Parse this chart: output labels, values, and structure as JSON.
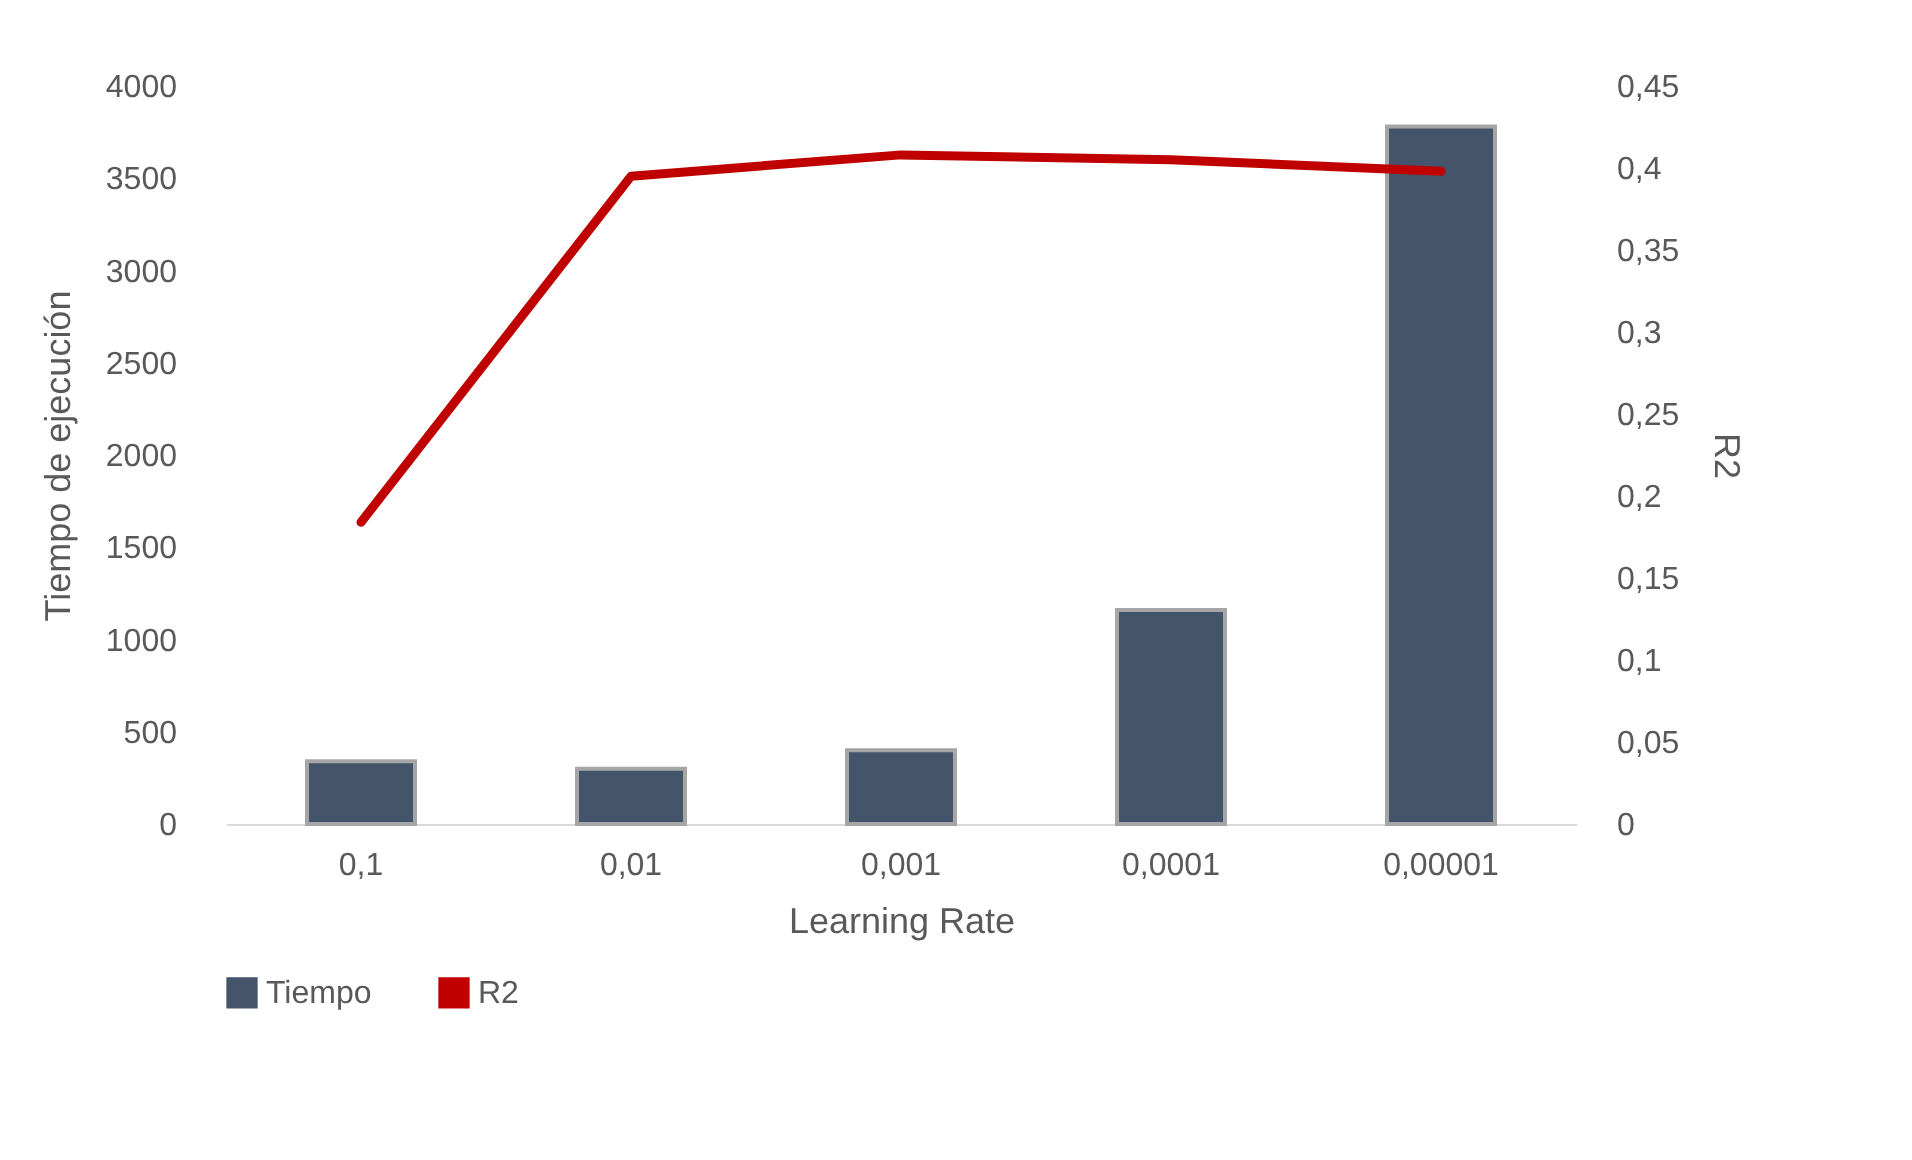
{
  "chart_data": {
    "type": "bar",
    "xlabel": "Learning Rate",
    "ylabel": "Tiempo de ejecución",
    "y2label": "R2",
    "categories": [
      "0,1",
      "0,01",
      "0,001",
      "0,0001",
      "0,00001"
    ],
    "series": [
      {
        "name": "Tiempo",
        "color": "#44546a",
        "values": [
          340,
          300,
          400,
          1160,
          3780
        ]
      },
      {
        "name": "R2",
        "type": "line",
        "axis": "y2",
        "color": "#c00000",
        "values": [
          0.184,
          0.395,
          0.408,
          0.405,
          0.398
        ]
      }
    ],
    "ylim": [
      0,
      4000
    ],
    "yticks": [
      0,
      500,
      1000,
      1500,
      2000,
      2500,
      3000,
      3500,
      4000
    ],
    "y2lim": [
      0,
      0.45
    ],
    "y2ticks": [
      0,
      {
        "value": 0.05,
        "label": "0,05"
      },
      {
        "value": 0.1,
        "label": "0,1"
      },
      {
        "value": 0.15,
        "label": "0,15"
      },
      {
        "value": 0.2,
        "label": "0,2"
      },
      {
        "value": 0.25,
        "label": "0,25"
      },
      {
        "value": 0.3,
        "label": "0,3"
      },
      {
        "value": 0.35,
        "label": "0,35"
      },
      {
        "value": 0.4,
        "label": "0,4"
      },
      {
        "value": 0.45,
        "label": "0,45"
      }
    ],
    "legend": "bottom",
    "grid": false,
    "marker": "none",
    "line_style": "solid"
  }
}
